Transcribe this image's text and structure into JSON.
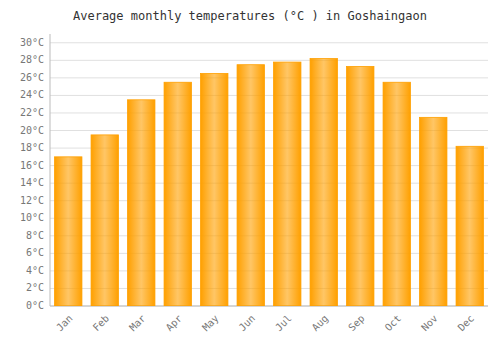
{
  "chart_data": {
    "type": "bar",
    "title": "Average monthly temperatures (°C ) in Goshaingaon",
    "categories": [
      "Jan",
      "Feb",
      "Mar",
      "Apr",
      "May",
      "Jun",
      "Jul",
      "Aug",
      "Sep",
      "Oct",
      "Nov",
      "Dec"
    ],
    "values": [
      17,
      19.5,
      23.5,
      25.5,
      26.5,
      27.5,
      27.8,
      28.2,
      27.3,
      25.5,
      21.5,
      18.2
    ],
    "color": "#FFA000",
    "ylim": [
      0,
      31
    ],
    "yticks": [
      {
        "value": 0,
        "label": "0°C"
      },
      {
        "value": 2,
        "label": "2°C"
      },
      {
        "value": 4,
        "label": "4°C"
      },
      {
        "value": 6,
        "label": "6°C"
      },
      {
        "value": 8,
        "label": "8°C"
      },
      {
        "value": 10,
        "label": "10°C"
      },
      {
        "value": 12,
        "label": "12°C"
      },
      {
        "value": 14,
        "label": "14°C"
      },
      {
        "value": 16,
        "label": "16°C"
      },
      {
        "value": 18,
        "label": "18°C"
      },
      {
        "value": 20,
        "label": "20°C"
      },
      {
        "value": 22,
        "label": "22°C"
      },
      {
        "value": 24,
        "label": "24°C"
      },
      {
        "value": 26,
        "label": "26°C"
      },
      {
        "value": 28,
        "label": "28°C"
      },
      {
        "value": 30,
        "label": "30°C"
      }
    ],
    "grid": true
  }
}
